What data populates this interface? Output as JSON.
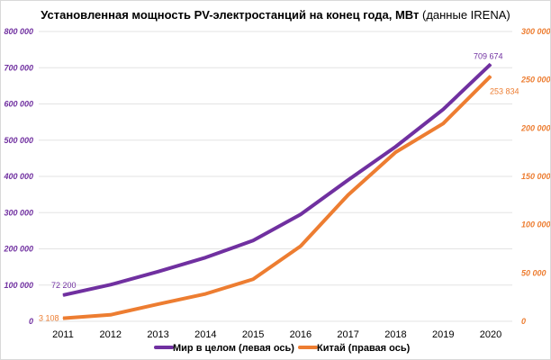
{
  "chart_data": {
    "type": "line",
    "title_bold": "Установленная мощность PV-электростанций на конец года, МВт",
    "title_normal": " (данные IRENA)",
    "categories": [
      "2011",
      "2012",
      "2013",
      "2014",
      "2015",
      "2016",
      "2017",
      "2018",
      "2019",
      "2020"
    ],
    "left_axis": {
      "ylim": [
        0,
        800000
      ],
      "ticks": [
        "0",
        "100 000",
        "200 000",
        "300 000",
        "400 000",
        "500 000",
        "600 000",
        "700 000",
        "800 000"
      ],
      "color": "#7030a0"
    },
    "right_axis": {
      "ylim": [
        0,
        300000
      ],
      "ticks": [
        "0",
        "50 000",
        "100 000",
        "150 000",
        "200 000",
        "250 000",
        "300 000"
      ],
      "color": "#ed7d31"
    },
    "series": [
      {
        "name": "Мир в целом (левая ось)",
        "axis": "left",
        "color": "#7030a0",
        "values": [
          72200,
          101000,
          137000,
          176000,
          223000,
          295000,
          390000,
          482000,
          585000,
          709674
        ],
        "labels": {
          "first": "72 200",
          "last": "709 674"
        }
      },
      {
        "name": "Китай (правая ось)",
        "axis": "right",
        "color": "#ed7d31",
        "values": [
          3108,
          6719,
          17759,
          28399,
          43549,
          77789,
          130822,
          175032,
          204700,
          253834
        ],
        "labels": {
          "first": "3 108",
          "last": "253 834"
        }
      }
    ],
    "grid": true,
    "legend": "bottom"
  }
}
